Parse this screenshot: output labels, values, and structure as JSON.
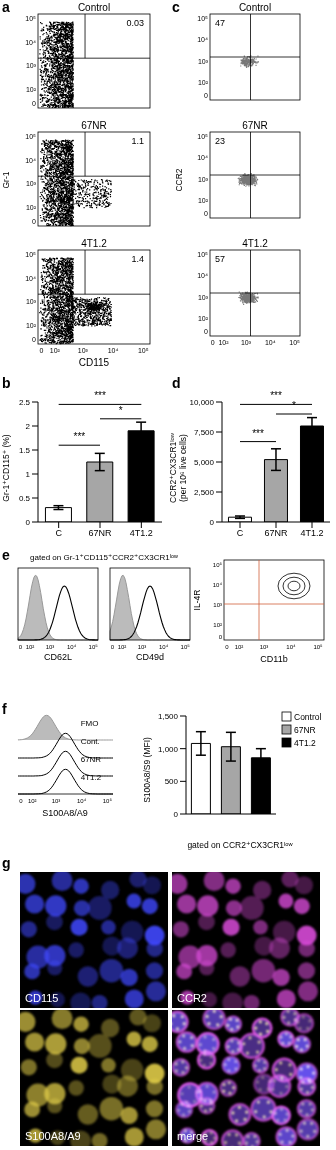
{
  "chart_data": [
    {
      "type": "bar",
      "panel": "b",
      "y_label": "Gr-1⁺CD115⁺ (%)",
      "categories": [
        "C",
        "67NR",
        "4T1.2"
      ],
      "values": [
        0.3,
        1.25,
        1.9
      ],
      "errors": [
        0.04,
        0.18,
        0.18
      ],
      "colors": [
        "#ffffff",
        "#a6a6a6",
        "#000000"
      ],
      "ylim": [
        0,
        2.5
      ],
      "yticks": [
        0,
        0.5,
        1,
        1.5,
        2,
        2.5
      ],
      "grid": false,
      "annotations": [
        {
          "from": "C",
          "to": "67NR",
          "y": 1.6,
          "label": "***"
        },
        {
          "from": "67NR",
          "to": "4T1.2",
          "y": 2.15,
          "label": "*"
        },
        {
          "from": "C",
          "to": "4T1.2",
          "y": 2.45,
          "label": "***"
        }
      ]
    },
    {
      "type": "bar",
      "panel": "d",
      "y_label": [
        "CCR2⁺CX3CR1ˡᵒʷ",
        "(per 10⁶ live cells)"
      ],
      "categories": [
        "C",
        "67NR",
        "4T1.2"
      ],
      "values": [
        400,
        5200,
        8000
      ],
      "errors": [
        100,
        900,
        700
      ],
      "colors": [
        "#ffffff",
        "#a6a6a6",
        "#000000"
      ],
      "ylim": [
        0,
        10000
      ],
      "yticks": [
        0,
        {
          "value": 2500,
          "label": "2,500"
        },
        {
          "value": 5000,
          "label": "5,000"
        },
        {
          "value": 7500,
          "label": "7,500"
        },
        {
          "value": 10000,
          "label": "10,000"
        }
      ],
      "grid": false,
      "annotations": [
        {
          "from": "C",
          "to": "67NR",
          "y": 6700,
          "label": "***"
        },
        {
          "from": "67NR",
          "to": "4T1.2",
          "y": 9000,
          "label": "*"
        },
        {
          "from": "C",
          "to": "4T1.2",
          "y": 9800,
          "label": "***"
        }
      ]
    },
    {
      "type": "bar",
      "panel": "f",
      "y_label": "S100A8/S9 (MFI)",
      "x_label": "gated on CCR2⁺CX3CR1ˡᵒʷ",
      "categories": [
        "Control",
        "67NR",
        "4T1.2"
      ],
      "values": [
        1080,
        1030,
        860
      ],
      "errors": [
        180,
        220,
        140
      ],
      "colors": [
        "#ffffff",
        "#a6a6a6",
        "#000000"
      ],
      "ylim": [
        0,
        1500
      ],
      "yticks": [
        0,
        500,
        {
          "value": 1000,
          "label": "1,000"
        },
        {
          "value": 1500,
          "label": "1,500"
        }
      ],
      "grid": false,
      "legend": "top-right",
      "tick_labels": "y"
    }
  ],
  "figure": {
    "a": {
      "panel": "a",
      "y_label": "Gr-1",
      "x_label": "CD115",
      "ticks": [
        "0",
        "10²",
        "10³",
        "10⁴",
        "10⁵"
      ],
      "plots": [
        {
          "title": "Control",
          "gate": 0.03
        },
        {
          "title": "67NR",
          "gate": 1.1
        },
        {
          "title": "4T1.2",
          "gate": 1.4
        }
      ]
    },
    "c": {
      "panel": "c",
      "y_label": "CCR2",
      "ticks": [
        "0",
        "10²",
        "10³",
        "10⁴",
        "10⁵"
      ],
      "plots": [
        {
          "title": "Control",
          "gate": 47
        },
        {
          "title": "67NR",
          "gate": 23
        },
        {
          "title": "4T1.2",
          "gate": 57
        }
      ]
    },
    "e": {
      "panel": "e",
      "title": "gated on Gr-1⁺CD115⁺CCR2⁺CX3CR1ˡᵒʷ",
      "histograms": [
        "CD62L",
        "CD49d"
      ],
      "contour": {
        "x_label": "CD11b",
        "y_label": "IL-4R"
      },
      "ticks": [
        "0",
        "10²",
        "10³",
        "10⁴",
        "10⁵"
      ]
    },
    "f": {
      "panel": "f",
      "histogram": {
        "rows": [
          "FMO",
          "Cont.",
          "67NR",
          "4T1.2"
        ],
        "x_label": "S100A8/A9"
      },
      "ticks": [
        "0",
        "10²",
        "10³",
        "10⁴",
        "10⁵"
      ]
    },
    "g": {
      "panel": "g",
      "images": [
        {
          "label": "CD115",
          "color": "#4048ff"
        },
        {
          "label": "CCR2",
          "color": "#d84bd8"
        },
        {
          "label": "S100A8/A9",
          "color": "#e0cc48"
        },
        {
          "label": "merge"
        }
      ]
    }
  }
}
